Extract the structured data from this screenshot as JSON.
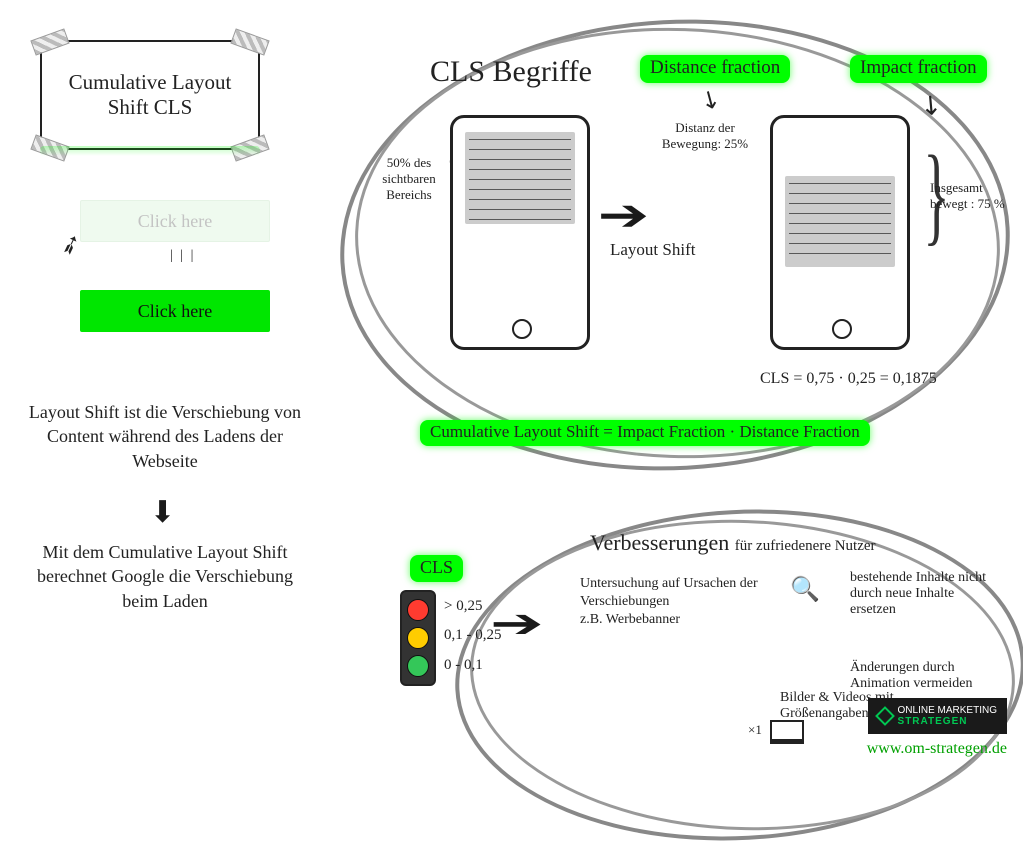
{
  "colors": {
    "accent_green": "#00e600",
    "highlight_green": "#00ff00",
    "ink": "#222222",
    "scribble_grey": "#888888",
    "traffic_red": "#ff3b30",
    "traffic_amber": "#ffcc00",
    "traffic_green": "#34c759",
    "badge_bg": "#1a1a1a",
    "badge_accent": "#00c853"
  },
  "title_card": "Cumulative Layout Shift   CLS",
  "click_demo": {
    "ghost_label": "Click here",
    "solid_label": "Click here",
    "shift_glyph": "| | |"
  },
  "paragraphs": {
    "p1": "Layout Shift ist die Verschiebung von Content während des Ladens der Webseite",
    "p2": "Mit dem Cumulative Layout Shift berechnet Google die Verschiebung beim Laden"
  },
  "begriffe": {
    "title": "CLS Begriffe",
    "distance_fraction": "Distance fraction",
    "impact_fraction": "Impact fraction",
    "left_brace_label": "50% des sichtbaren Bereichs",
    "distance_anno": "Distanz der Bewegung: 25%",
    "layout_shift_label": "Layout Shift",
    "right_brace_label": "Insgesamt bewegt : 75 %",
    "calc": "CLS = 0,75 · 0,25 = 0,1875",
    "formula": "Cumulative Layout Shift =  Impact Fraction · Distance Fraction"
  },
  "traffic_light": {
    "title": "CLS",
    "thresholds": {
      "red": {
        "label": "> 0,25",
        "color": "#ff3b30"
      },
      "amber": {
        "label": "0,1 - 0,25",
        "color": "#ffcc00"
      },
      "green": {
        "label": "0 - 0,1",
        "color": "#34c759"
      }
    }
  },
  "verbesserungen": {
    "title": "Verbesserungen",
    "subtitle": "für zufriedenere Nutzer",
    "investigate": "Untersuchung auf Ursachen der Verschiebungen",
    "investigate_example": "z.B. Werbebanner",
    "media_sizes": "Bilder & Videos mit Größenangaben",
    "screen_symbol_label": "×1",
    "no_replace": "bestehende Inhalte nicht durch neue Inhalte ersetzen",
    "no_anim": "Änderungen durch Animation vermeiden"
  },
  "footer": {
    "badge_line1": "ONLINE MARKETING",
    "badge_line2": "STRATEGEN",
    "url": "www.om-strategen.de"
  }
}
